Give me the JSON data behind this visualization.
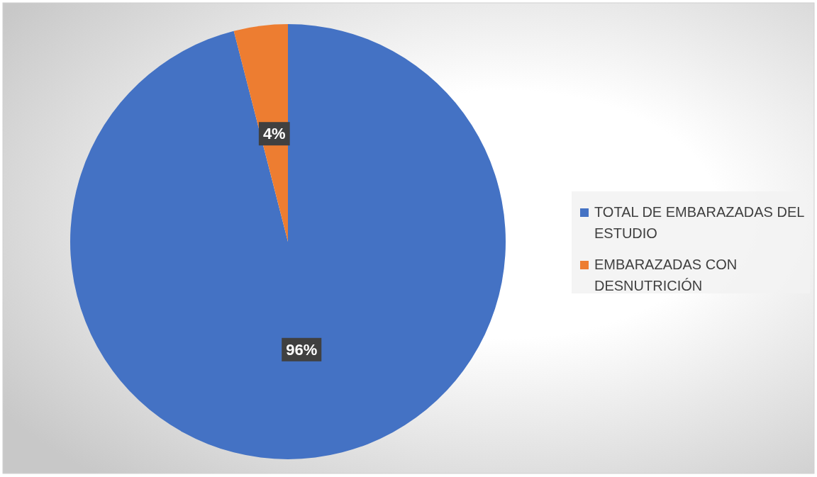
{
  "chart_data": {
    "type": "pie",
    "categories": [
      "TOTAL DE EMBARAZADAS DEL ESTUDIO",
      "EMBARAZADAS CON DESNUTRICIÓN"
    ],
    "values": [
      96,
      4
    ],
    "colors": [
      "#4472c4",
      "#ed7d31"
    ],
    "value_labels": [
      "96%",
      "4%"
    ],
    "legend": "right"
  }
}
